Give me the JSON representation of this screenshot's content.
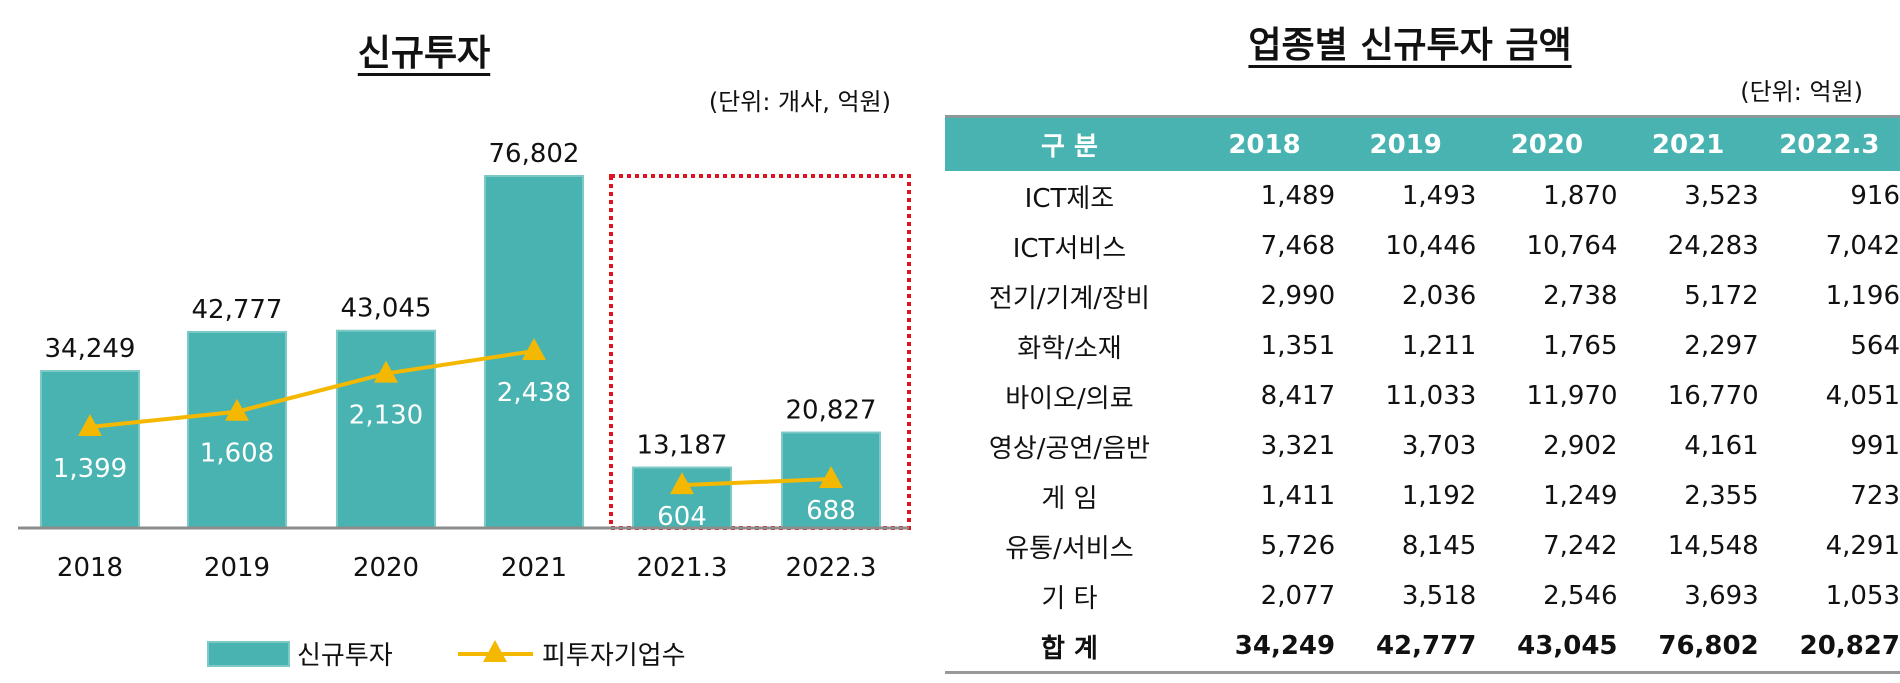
{
  "chart_data": {
    "type": "bar+line",
    "title": "신규투자",
    "unit": "(단위: 개사, 억원)",
    "categories": [
      "2018",
      "2019",
      "2020",
      "2021",
      "2021.3",
      "2022.3"
    ],
    "series": [
      {
        "name": "신규투자",
        "type": "bar",
        "values": [
          34249,
          42777,
          43045,
          76802,
          13187,
          20827
        ],
        "labels": [
          "34,249",
          "42,777",
          "43,045",
          "76,802",
          "13,187",
          "20,827"
        ],
        "color": "#48b3b1"
      },
      {
        "name": "피투자기업수",
        "type": "line",
        "values": [
          1399,
          1608,
          2130,
          2438,
          604,
          688
        ],
        "labels": [
          "1,399",
          "1,608",
          "2,130",
          "2,438",
          "604",
          "688"
        ],
        "color": "#f5b800"
      }
    ],
    "highlight_categories": [
      "2021.3",
      "2022.3"
    ],
    "highlight_color": "#e0141e",
    "legend_position": "bottom",
    "grid": false
  },
  "table": {
    "title": "업종별 신규투자 금액",
    "unit": "(단위: 억원)",
    "header": [
      "구 분",
      "2018",
      "2019",
      "2020",
      "2021",
      "2022.3"
    ],
    "header_color": "#48b3b1",
    "rows": [
      [
        "ICT제조",
        "1,489",
        "1,493",
        "1,870",
        "3,523",
        "916"
      ],
      [
        "ICT서비스",
        "7,468",
        "10,446",
        "10,764",
        "24,283",
        "7,042"
      ],
      [
        "전기/기계/장비",
        "2,990",
        "2,036",
        "2,738",
        "5,172",
        "1,196"
      ],
      [
        "화학/소재",
        "1,351",
        "1,211",
        "1,765",
        "2,297",
        "564"
      ],
      [
        "바이오/의료",
        "8,417",
        "11,033",
        "11,970",
        "16,770",
        "4,051"
      ],
      [
        "영상/공연/음반",
        "3,321",
        "3,703",
        "2,902",
        "4,161",
        "991"
      ],
      [
        "게 임",
        "1,411",
        "1,192",
        "1,249",
        "2,355",
        "723"
      ],
      [
        "유통/서비스",
        "5,726",
        "8,145",
        "7,242",
        "14,548",
        "4,291"
      ],
      [
        "기 타",
        "2,077",
        "3,518",
        "2,546",
        "3,693",
        "1,053"
      ]
    ],
    "total": [
      "합 계",
      "34,249",
      "42,777",
      "43,045",
      "76,802",
      "20,827"
    ]
  }
}
